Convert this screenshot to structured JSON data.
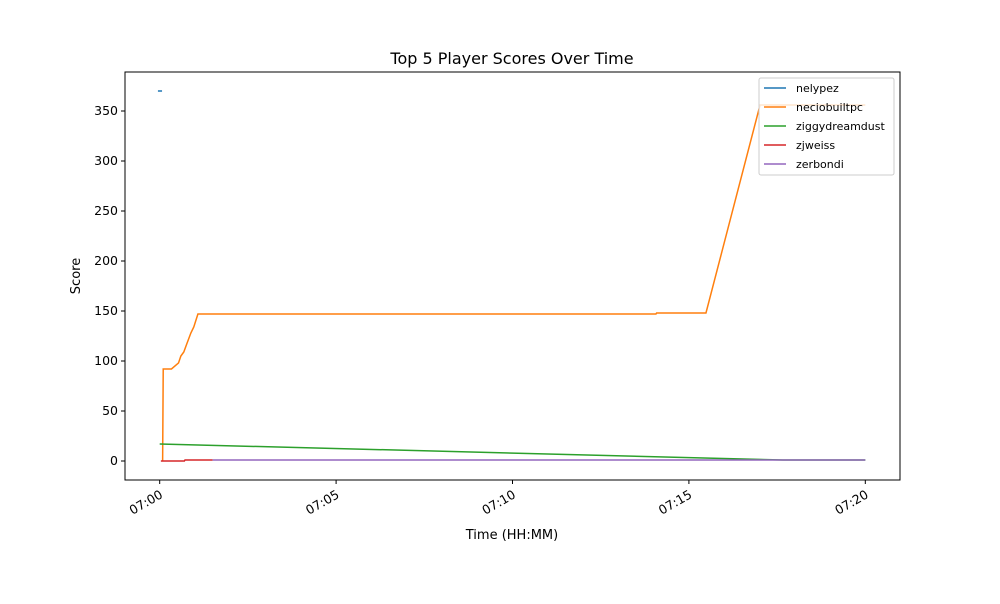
{
  "chart_data": {
    "type": "line",
    "title": "Top 5 Player Scores Over Time",
    "xlabel": "Time (HH:MM)",
    "ylabel": "Score",
    "xlim_minutes_after": "07:00",
    "xlim": [
      "06:59:01",
      "07:20:59"
    ],
    "ylim": [
      -19,
      389
    ],
    "xticks": [
      "07:00",
      "07:05",
      "07:10",
      "07:15",
      "07:20"
    ],
    "yticks": [
      0,
      50,
      100,
      150,
      200,
      250,
      300,
      350
    ],
    "grid": false,
    "legend_position": "top-right",
    "series": [
      {
        "name": "nelypez",
        "color": "#1f77b4",
        "points": [
          [
            "06:59:57",
            370
          ],
          [
            "07:00:04",
            370
          ]
        ]
      },
      {
        "name": "neciobuiltpc",
        "color": "#ff7f0e",
        "points": [
          [
            "07:00:05",
            0
          ],
          [
            "07:00:06",
            92
          ],
          [
            "07:00:20",
            92
          ],
          [
            "07:00:32",
            98
          ],
          [
            "07:00:36",
            105
          ],
          [
            "07:00:41",
            109
          ],
          [
            "07:00:46",
            117
          ],
          [
            "07:00:53",
            128
          ],
          [
            "07:00:58",
            134
          ],
          [
            "07:01:05",
            147
          ],
          [
            "07:14:04",
            147
          ],
          [
            "07:14:05",
            148
          ],
          [
            "07:15:29",
            148
          ],
          [
            "07:17:01",
            356
          ],
          [
            "07:20:00",
            356
          ]
        ]
      },
      {
        "name": "ziggydreamdust",
        "color": "#2ca02c",
        "points": [
          [
            "07:00:00",
            17
          ],
          [
            "07:17:40",
            1
          ],
          [
            "07:20:00",
            1
          ]
        ]
      },
      {
        "name": "zjweiss",
        "color": "#d62728",
        "points": [
          [
            "07:00:02",
            0
          ],
          [
            "07:00:42",
            0
          ],
          [
            "07:00:43",
            1
          ],
          [
            "07:01:30",
            1
          ]
        ]
      },
      {
        "name": "zerbondi",
        "color": "#9467bd",
        "points": [
          [
            "07:01:30",
            1
          ],
          [
            "07:20:00",
            1
          ]
        ]
      }
    ]
  }
}
